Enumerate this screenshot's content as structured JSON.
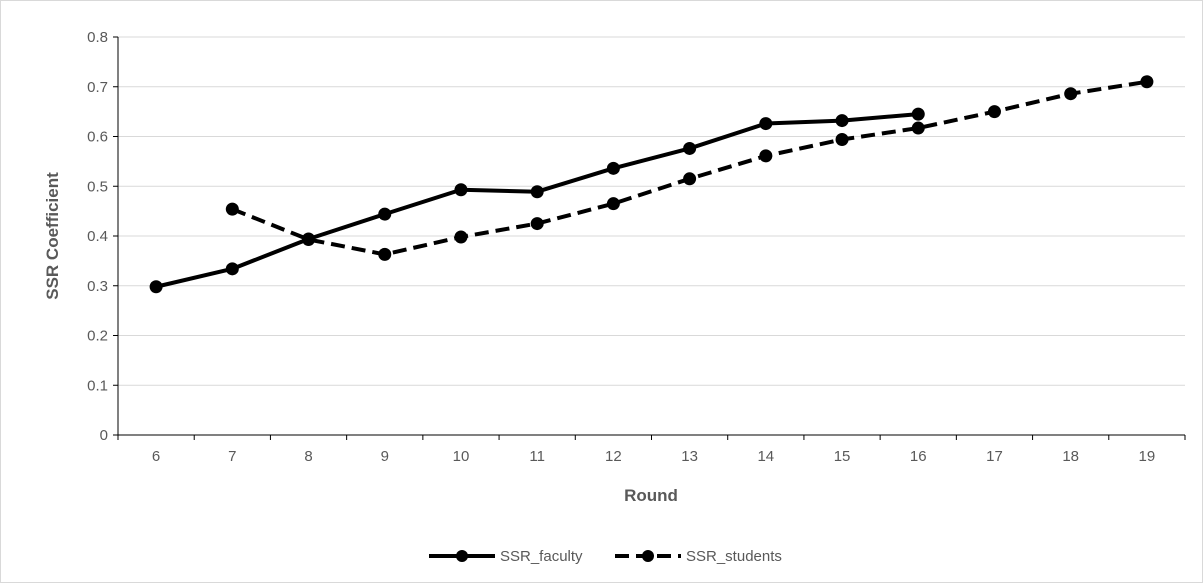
{
  "chart_data": {
    "type": "line",
    "x": [
      6,
      7,
      8,
      9,
      10,
      11,
      12,
      13,
      14,
      15,
      16,
      17,
      18,
      19
    ],
    "xlabel": "Round",
    "ylabel": "SSR Coefficient",
    "ylim": [
      0,
      0.8
    ],
    "yticks": [
      "0",
      "0.1",
      "0.2",
      "0.3",
      "0.4",
      "0.5",
      "0.6",
      "0.7",
      "0.8"
    ],
    "grid": true,
    "legend_position": "bottom",
    "series": [
      {
        "name": "SSR_faculty",
        "line_style": "solid",
        "color": "#000000",
        "values": [
          0.298,
          0.334,
          0.394,
          0.444,
          0.493,
          0.489,
          0.536,
          0.576,
          0.626,
          0.632,
          0.645,
          null,
          null,
          null
        ]
      },
      {
        "name": "SSR_students",
        "line_style": "dashed",
        "color": "#000000",
        "values": [
          null,
          0.454,
          0.393,
          0.363,
          0.398,
          0.425,
          0.465,
          0.515,
          0.561,
          0.594,
          0.617,
          0.65,
          0.686,
          0.71
        ]
      }
    ]
  }
}
